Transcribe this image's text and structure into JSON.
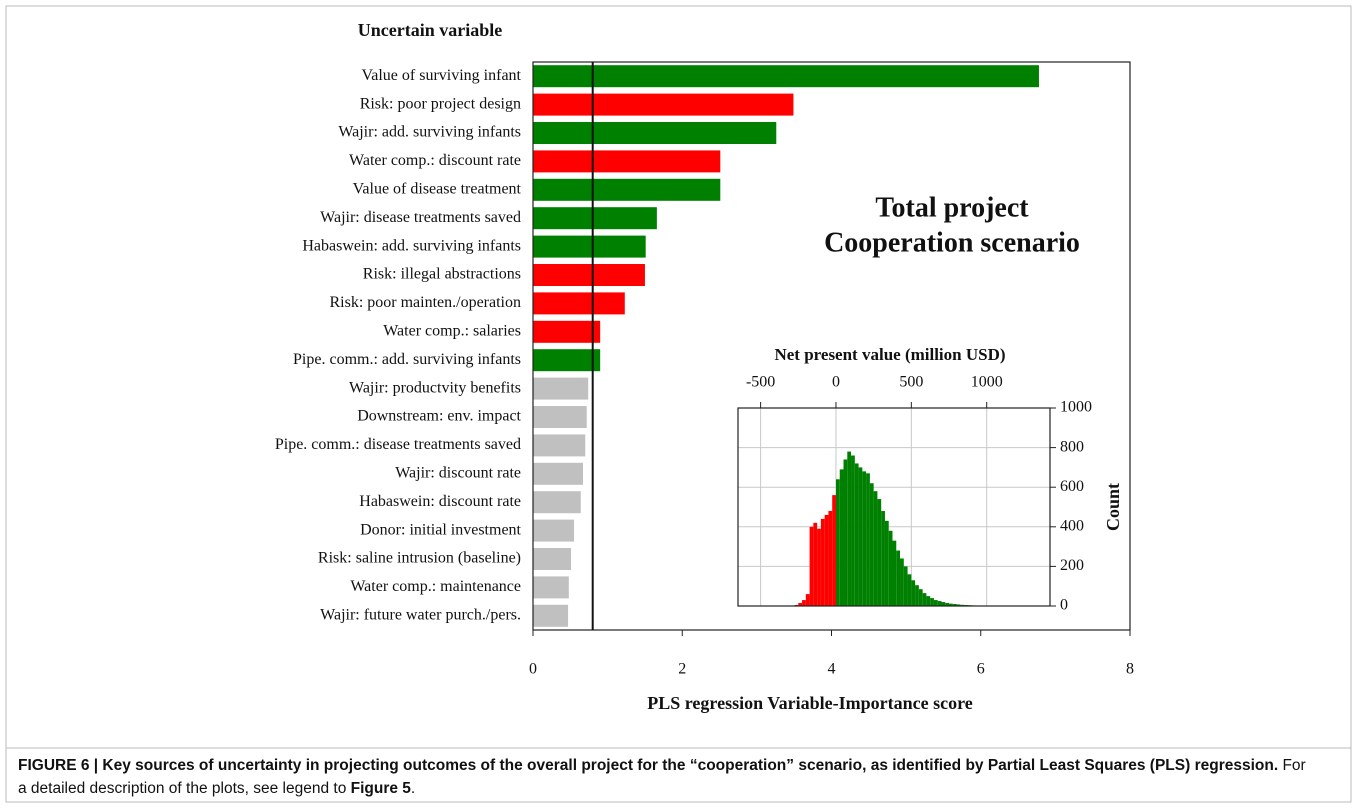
{
  "chart_data": [
    {
      "type": "bar",
      "orientation": "horizontal",
      "y_label": "Uncertain variable",
      "x_label": "PLS regression Variable-Importance score",
      "annotation": [
        "Total project",
        "Cooperation scenario"
      ],
      "categories": [
        "Value of surviving infant",
        "Risk: poor project design",
        "Wajir: add. surviving infants",
        "Water comp.: discount rate",
        "Value of disease treatment",
        "Wajir: disease treatments saved",
        "Habaswein: add. surviving infants",
        "Risk: illegal abstractions",
        "Risk: poor mainten./operation",
        "Water comp.: salaries",
        "Pipe. comm.: add. surviving infants",
        "Wajir: productvity benefits",
        "Downstream: env. impact",
        "Pipe. comm.: disease treatments saved",
        "Wajir: discount rate",
        "Habaswein: discount rate",
        "Donor: initial investment",
        "Risk: saline intrusion (baseline)",
        "Water comp.: maintenance",
        "Wajir: future water purch./pers."
      ],
      "values": [
        6.78,
        3.49,
        3.26,
        2.51,
        2.51,
        1.66,
        1.51,
        1.5,
        1.23,
        0.9,
        0.9,
        0.74,
        0.72,
        0.7,
        0.67,
        0.64,
        0.55,
        0.51,
        0.48,
        0.47
      ],
      "colors": [
        "#008000",
        "#ff0000",
        "#008000",
        "#ff0000",
        "#008000",
        "#008000",
        "#008000",
        "#ff0000",
        "#ff0000",
        "#ff0000",
        "#008000",
        "#c0c0c0",
        "#c0c0c0",
        "#c0c0c0",
        "#c0c0c0",
        "#c0c0c0",
        "#c0c0c0",
        "#c0c0c0",
        "#c0c0c0",
        "#c0c0c0"
      ],
      "threshold": 0.8,
      "xlim": [
        0,
        8
      ],
      "xticks": [
        0,
        2,
        4,
        6,
        8
      ]
    },
    {
      "type": "histogram",
      "x_label": "Net present value (million USD)",
      "y_label": "Count",
      "bins": [
        -275,
        -250,
        -225,
        -200,
        -175,
        -150,
        -125,
        -100,
        -75,
        -50,
        -25,
        0,
        25,
        50,
        75,
        100,
        125,
        150,
        175,
        200,
        225,
        250,
        275,
        300,
        325,
        350,
        375,
        400,
        425,
        450,
        475,
        500,
        525,
        550,
        575,
        600,
        625,
        650,
        675,
        700,
        725,
        750,
        775,
        800,
        825,
        850,
        875,
        900,
        925,
        950,
        975
      ],
      "counts": [
        5,
        15,
        30,
        60,
        400,
        420,
        390,
        440,
        460,
        480,
        560,
        640,
        690,
        740,
        780,
        760,
        720,
        700,
        680,
        670,
        620,
        580,
        540,
        480,
        430,
        380,
        330,
        280,
        240,
        200,
        160,
        130,
        105,
        85,
        65,
        50,
        40,
        30,
        25,
        20,
        15,
        12,
        10,
        8,
        6,
        5,
        4,
        3,
        2,
        1
      ],
      "negative_color": "#ff0000",
      "positive_color": "#008000",
      "grid": true,
      "xlim": [
        -650,
        1420
      ],
      "xticks": [
        -500,
        0,
        500,
        1000
      ],
      "ylim": [
        0,
        1000
      ],
      "yticks": [
        0,
        200,
        400,
        600,
        800,
        1000
      ]
    }
  ],
  "caption": {
    "title": "FIGURE 6 | Key sources of uncertainty in projecting outcomes of the overall project for the “cooperation” scenario, as identified by Partial Least Squares (PLS) regression.",
    "text": "For a detailed description of the plots, see legend to",
    "ref": "Figure 5",
    "end": "."
  }
}
